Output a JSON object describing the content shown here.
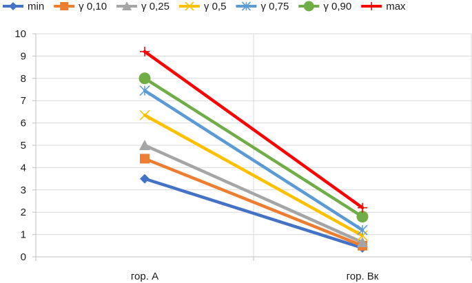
{
  "chart_data": {
    "type": "line",
    "title": "",
    "xlabel": "",
    "ylabel": "",
    "categories": [
      "гор. А",
      "гор. Вк"
    ],
    "ylim": [
      0,
      10
    ],
    "yticks": [
      0,
      1,
      2,
      3,
      4,
      5,
      6,
      7,
      8,
      9,
      10
    ],
    "grid": true,
    "legend_position": "top",
    "series": [
      {
        "name": "min",
        "values": [
          3.5,
          0.4
        ],
        "color": "#4472C4",
        "marker": "diamond"
      },
      {
        "name": "γ 0,10",
        "values": [
          4.4,
          0.5
        ],
        "color": "#ED7D31",
        "marker": "square"
      },
      {
        "name": "γ 0,25",
        "values": [
          5.0,
          0.65
        ],
        "color": "#A5A5A5",
        "marker": "triangle"
      },
      {
        "name": "γ 0,5",
        "values": [
          6.35,
          0.95
        ],
        "color": "#FFC000",
        "marker": "x"
      },
      {
        "name": "γ 0,75",
        "values": [
          7.45,
          1.2
        ],
        "color": "#5B9BD5",
        "marker": "star"
      },
      {
        "name": "γ 0,90",
        "values": [
          8.0,
          1.8
        ],
        "color": "#70AD47",
        "marker": "circle"
      },
      {
        "name": "max",
        "values": [
          9.2,
          2.2
        ],
        "color": "#FF0000",
        "marker": "plus"
      }
    ]
  }
}
